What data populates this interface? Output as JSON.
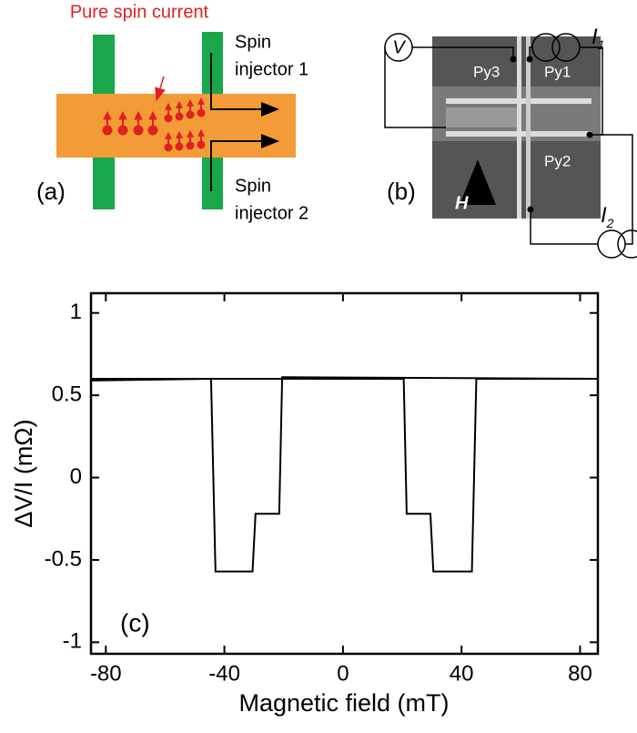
{
  "panel_a": {
    "label": "(a)",
    "title": "Pure spin current",
    "injector_1": [
      "Spin",
      "injector 1"
    ],
    "injector_2": [
      "Spin",
      "injector 2"
    ]
  },
  "panel_b": {
    "label": "(b)",
    "py3": "Py3",
    "py1": "Py1",
    "py2": "Py2",
    "field": "H",
    "voltmeter": "V",
    "current_1": {
      "letter": "I",
      "sub": "1"
    },
    "current_2": {
      "letter": "I",
      "sub": "2"
    }
  },
  "chart_data": {
    "type": "line",
    "panel_label": "(c)",
    "xlabel": "Magnetic field (mT)",
    "ylabel": "ΔV/I (mΩ)",
    "xlim": [
      -85,
      86
    ],
    "ylim": [
      -1.07,
      1.12
    ],
    "xticks": [
      -80,
      -40,
      0,
      40,
      80
    ],
    "yticks": [
      -1,
      -0.5,
      0,
      0.5,
      1
    ],
    "series": [
      {
        "color": "#000000",
        "x": [
          -85,
          20.5,
          21.5,
          29.5,
          30.5,
          43.5,
          45,
          86
        ],
        "values": [
          0.6,
          0.6,
          -0.22,
          -0.22,
          -0.57,
          -0.57,
          0.6,
          0.6
        ]
      },
      {
        "color": "#000000",
        "x": [
          86,
          -20.5,
          -21.5,
          -29.5,
          -30.5,
          -43,
          -44.5,
          -85
        ],
        "values": [
          0.6,
          0.61,
          -0.22,
          -0.22,
          -0.57,
          -0.57,
          0.6,
          0.59
        ]
      }
    ]
  }
}
